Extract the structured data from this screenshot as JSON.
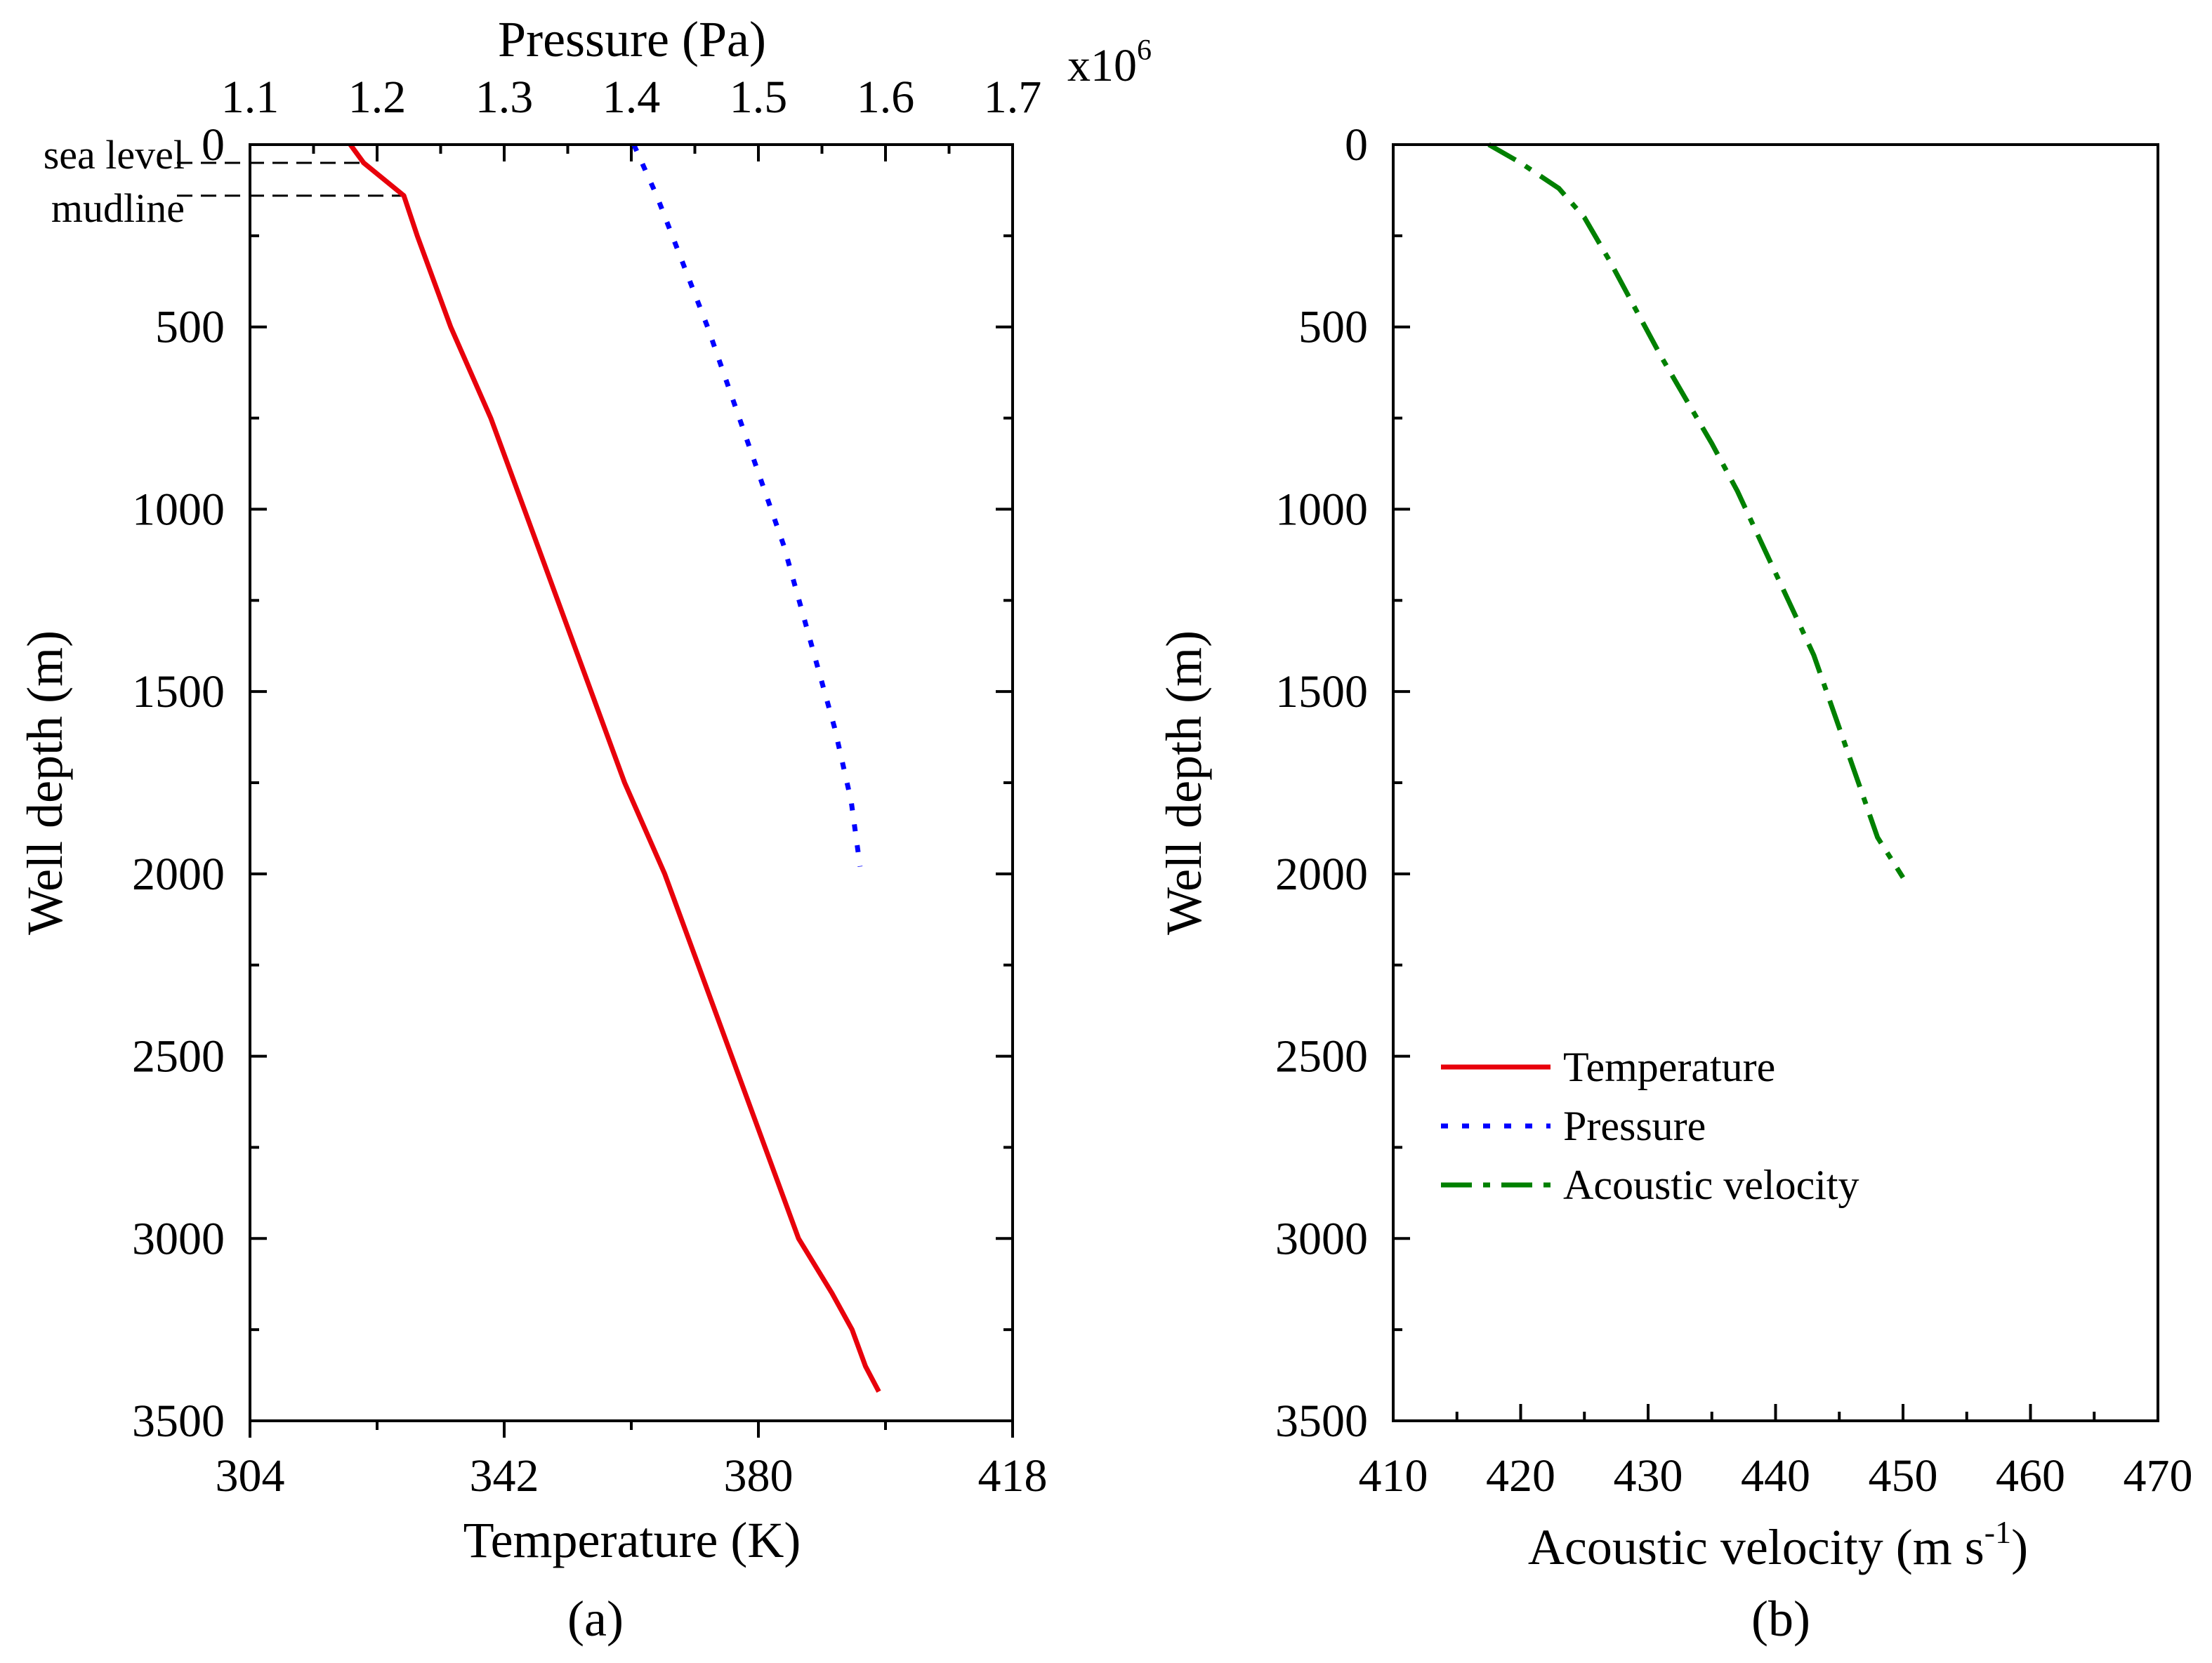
{
  "chart_data": [
    {
      "panel": "(a)",
      "type": "line",
      "ylabel": "Well depth (m)",
      "ylim": [
        0,
        3500
      ],
      "y_ticks": [
        0,
        500,
        1000,
        1500,
        2000,
        2500,
        3000,
        3500
      ],
      "y_reversed": true,
      "xlabel_bottom": "Temperature (K)",
      "xlim_bottom": [
        304,
        418
      ],
      "x_ticks_bottom": [
        304,
        342,
        380,
        418
      ],
      "xlabel_top": "Pressure (Pa)",
      "xlim_top": [
        1.1,
        1.7
      ],
      "x_ticks_top": [
        "1.1",
        "1.2",
        "1.3",
        "1.4",
        "1.5",
        "1.6",
        "1.7"
      ],
      "x_top_multiplier": "x10",
      "x_top_multiplier_exp": "6",
      "annotations": [
        {
          "text": "sea level",
          "depth": 50
        },
        {
          "text": "mudline",
          "depth": 140
        }
      ],
      "series": [
        {
          "name": "Temperature",
          "axis": "bottom",
          "color": "#e8000b",
          "style": "solid",
          "x": [
            319,
            321,
            327,
            329,
            334,
            340,
            345,
            350,
            355,
            360,
            366,
            371,
            376,
            381,
            386,
            391,
            394,
            396,
            398
          ],
          "y": [
            0,
            50,
            140,
            250,
            500,
            750,
            1000,
            1250,
            1500,
            1750,
            2000,
            2250,
            2500,
            2750,
            3000,
            3150,
            3250,
            3350,
            3420
          ]
        },
        {
          "name": "Pressure",
          "axis": "top",
          "color": "#0000ff",
          "style": "dotted",
          "x": [
            1.402,
            1.42,
            1.44,
            1.46,
            1.48,
            1.5,
            1.52,
            1.54,
            1.56,
            1.573,
            1.58
          ],
          "y": [
            0,
            140,
            320,
            500,
            700,
            900,
            1100,
            1350,
            1600,
            1800,
            1980
          ]
        }
      ]
    },
    {
      "panel": "(b)",
      "type": "line",
      "ylabel": "Well depth (m)",
      "ylim": [
        0,
        3500
      ],
      "y_ticks": [
        0,
        500,
        1000,
        1500,
        2000,
        2500,
        3000,
        3500
      ],
      "y_reversed": true,
      "xlabel": "Acoustic velocity (m s",
      "xlabel_sup": "-1",
      "xlabel_end": ")",
      "xlim": [
        410,
        470
      ],
      "x_ticks": [
        410,
        420,
        430,
        440,
        450,
        460,
        470
      ],
      "series": [
        {
          "name": "Acoustic velocity",
          "color": "#008000",
          "style": "dashdot",
          "x": [
            417.5,
            420,
            423,
            425,
            427,
            429,
            431,
            433,
            435,
            437,
            439,
            441,
            443,
            444,
            445,
            446,
            447,
            448,
            450
          ],
          "y": [
            0,
            50,
            120,
            200,
            320,
            450,
            580,
            700,
            820,
            950,
            1100,
            1250,
            1400,
            1500,
            1600,
            1700,
            1800,
            1900,
            2010
          ]
        }
      ],
      "legend": {
        "placement": "lower-left",
        "entries": [
          {
            "label": "Temperature",
            "color": "#e8000b",
            "style": "solid"
          },
          {
            "label": "Pressure",
            "color": "#0000ff",
            "style": "dotted"
          },
          {
            "label": "Acoustic velocity",
            "color": "#008000",
            "style": "dashdot"
          }
        ]
      }
    }
  ]
}
